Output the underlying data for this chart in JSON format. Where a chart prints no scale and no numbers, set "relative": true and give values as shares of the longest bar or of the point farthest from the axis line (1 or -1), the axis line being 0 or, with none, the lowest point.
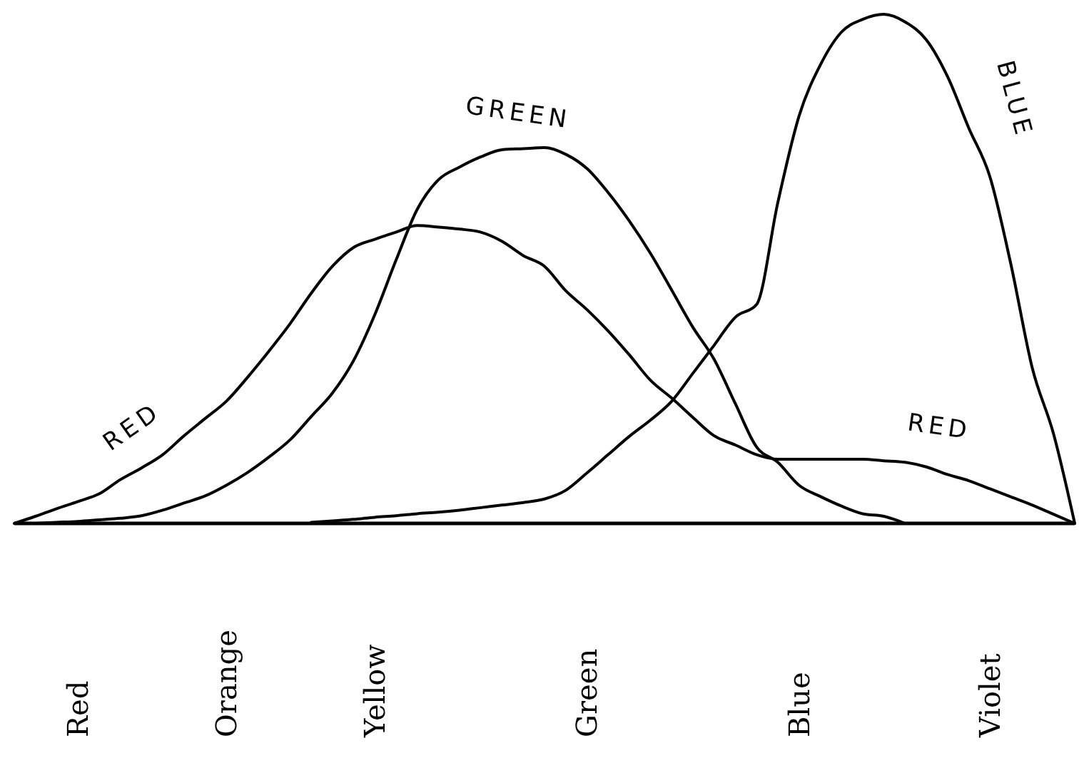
{
  "chart_data": {
    "type": "line",
    "relative": true,
    "categories": [
      null,
      null,
      null,
      "Red",
      null,
      null,
      null,
      null,
      null,
      null,
      "Orange",
      null,
      null,
      null,
      null,
      null,
      null,
      "Yellow",
      null,
      null,
      null,
      null,
      null,
      null,
      null,
      null,
      null,
      "Green",
      null,
      null,
      null,
      null,
      null,
      null,
      null,
      null,
      null,
      "Blue",
      null,
      null,
      null,
      null,
      null,
      null,
      null,
      null,
      "Violet",
      null,
      null,
      null,
      null
    ],
    "series": [
      {
        "color": "#000000",
        "values": [
          0,
          0.014,
          0.029,
          0.043,
          0.058,
          0.086,
          0.109,
          0.135,
          0.172,
          0.206,
          0.24,
          0.287,
          0.338,
          0.392,
          0.452,
          0.505,
          0.542,
          0.558,
          0.572,
          0.585,
          0.582,
          0.578,
          0.572,
          0.554,
          0.526,
          0.505,
          0.457,
          0.42,
          0.378,
          0.331,
          0.281,
          0.246,
          0.208,
          0.172,
          0.154,
          0.135,
          0.126,
          0.126,
          0.126,
          0.126,
          0.126,
          0.123,
          0.12,
          0.111,
          0.096,
          0.084,
          0.068,
          0.052,
          0.036,
          0.018,
          0
        ]
      },
      {
        "color": "#000000",
        "values": [
          null,
          0,
          0.002,
          0.004,
          0.007,
          0.01,
          0.015,
          0.026,
          0.04,
          0.054,
          0.075,
          0.1,
          0.13,
          0.164,
          0.21,
          0.256,
          0.32,
          0.41,
          0.517,
          0.617,
          0.675,
          0.7,
          0.72,
          0.734,
          0.736,
          0.738,
          0.725,
          0.697,
          0.65,
          0.594,
          0.53,
          0.458,
          0.385,
          0.322,
          0.235,
          0.15,
          0.12,
          0.075,
          0.053,
          0.034,
          0.019,
          0.014,
          0,
          null,
          null,
          null,
          null,
          null,
          null,
          null,
          null
        ]
      },
      {
        "color": "#000000",
        "values": [
          null,
          null,
          null,
          null,
          null,
          null,
          null,
          null,
          null,
          null,
          null,
          null,
          null,
          null,
          0.002,
          0.005,
          0.008,
          0.012,
          0.015,
          0.019,
          0.022,
          0.026,
          0.031,
          0.036,
          0.041,
          0.048,
          0.065,
          0.099,
          0.135,
          0.171,
          0.203,
          0.24,
          0.295,
          0.35,
          0.405,
          0.43,
          0.63,
          0.8,
          0.9,
          0.965,
          0.99,
          1,
          0.985,
          0.95,
          0.878,
          0.777,
          0.681,
          0.507,
          0.305,
          0.176,
          0
        ]
      }
    ],
    "annotations": [
      "RED",
      "GREEN",
      "BLUE",
      "RED"
    ],
    "marker": "none",
    "line_style": "solid",
    "grid": false
  }
}
